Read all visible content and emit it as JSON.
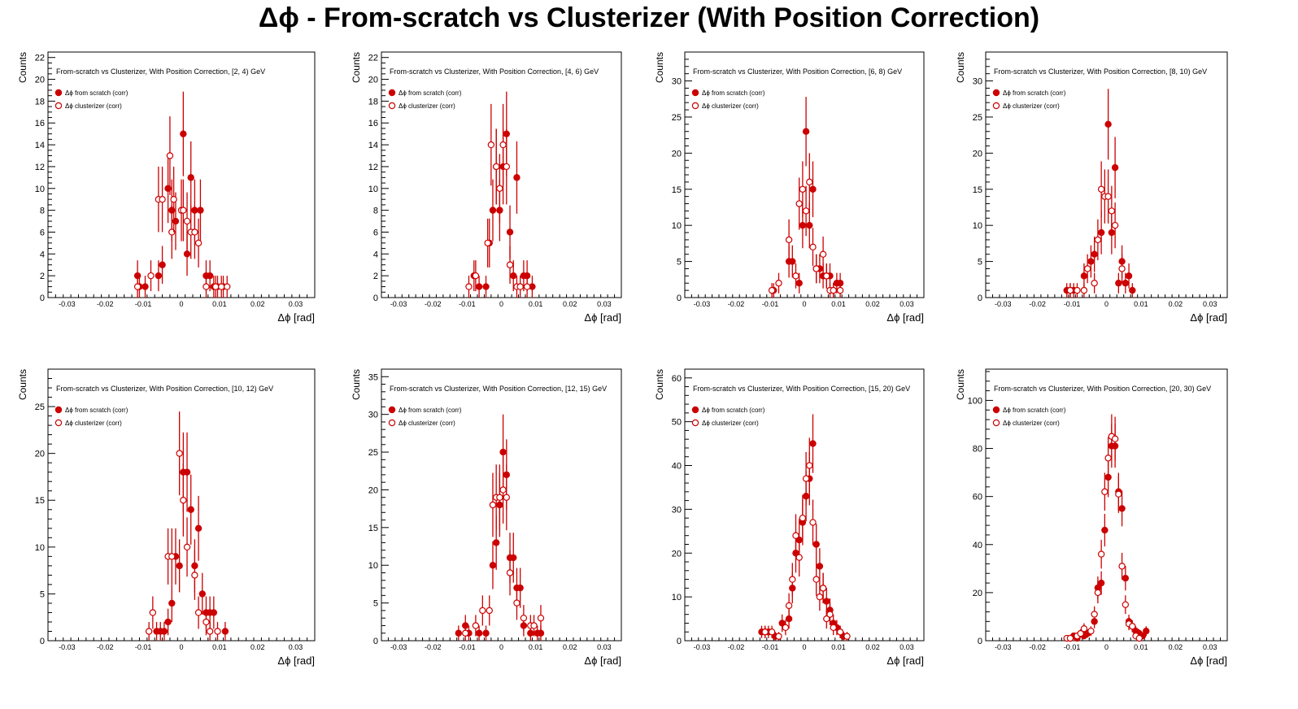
{
  "title": "Δϕ  - From-scratch vs Clusterizer  (With Position Correction)",
  "colors": {
    "series": "#cc0000",
    "axis": "#000000",
    "background": "#ffffff"
  },
  "chart_data": [
    {
      "type": "scatter",
      "title": "From-scratch vs Clusterizer, With Position Correction, [2, 4) GeV",
      "xlabel": "Δϕ  [rad]",
      "ylabel": "Counts",
      "xlim": [
        -0.035,
        0.035
      ],
      "ylim": [
        0,
        22.5
      ],
      "xticks": [
        -0.03,
        -0.02,
        -0.01,
        0,
        0.01,
        0.02,
        0.03
      ],
      "yticks": [
        0,
        2,
        4,
        6,
        8,
        10,
        12,
        14,
        16,
        18,
        20,
        22
      ],
      "grid": false,
      "legend": "top-left",
      "series": [
        {
          "name": "Δϕ  from scratch (corr)",
          "marker": "filled",
          "x": [
            -0.0115,
            -0.011,
            -0.0095,
            -0.006,
            -0.005,
            -0.0035,
            -0.0025,
            -0.0015,
            0.0005,
            0.0015,
            0.0025,
            0.0035,
            0.005,
            0.0065,
            0.0075,
            0.0085,
            0.0095,
            0.011
          ],
          "y": [
            2,
            1,
            1,
            2,
            3,
            10,
            8,
            7,
            15,
            4,
            11,
            8,
            8,
            2,
            2,
            1,
            1,
            1
          ]
        },
        {
          "name": "Δϕ  clusterizer (corr)",
          "marker": "open",
          "x": [
            -0.0115,
            -0.008,
            -0.006,
            -0.005,
            -0.003,
            -0.0025,
            -0.002,
            0,
            0.0005,
            0.0015,
            0.0025,
            0.0035,
            0.0045,
            0.0065,
            0.009,
            0.0105,
            0.012
          ],
          "y": [
            1,
            2,
            9,
            9,
            13,
            6,
            9,
            8,
            8,
            7,
            6,
            6,
            5,
            1,
            1,
            1,
            1
          ]
        }
      ]
    },
    {
      "type": "scatter",
      "title": "From-scratch vs Clusterizer, With Position Correction, [4, 6) GeV",
      "xlabel": "Δϕ  [rad]",
      "ylabel": "Counts",
      "xlim": [
        -0.035,
        0.035
      ],
      "ylim": [
        0,
        22.5
      ],
      "xticks": [
        -0.03,
        -0.02,
        -0.01,
        0,
        0.01,
        0.02,
        0.03
      ],
      "yticks": [
        0,
        2,
        4,
        6,
        8,
        10,
        12,
        14,
        16,
        18,
        20,
        22
      ],
      "grid": false,
      "legend": "top-left",
      "series": [
        {
          "name": "Δϕ  from scratch (corr)",
          "marker": "filled",
          "x": [
            -0.008,
            -0.0065,
            -0.0045,
            -0.0035,
            -0.0025,
            -0.0015,
            -0.0005,
            0.0005,
            0.0015,
            0.0025,
            0.0035,
            0.0045,
            0.0065,
            0.0075,
            0.009
          ],
          "y": [
            2,
            1,
            1,
            5,
            8,
            12,
            8,
            12,
            15,
            6,
            2,
            11,
            2,
            2,
            1
          ]
        },
        {
          "name": "Δϕ  clusterizer (corr)",
          "marker": "open",
          "x": [
            -0.0095,
            -0.0075,
            -0.004,
            -0.003,
            -0.0015,
            -0.0005,
            0.0005,
            0.0015,
            0.0025,
            0.0045,
            0.0055,
            0.0075
          ],
          "y": [
            1,
            2,
            5,
            14,
            12,
            10,
            14,
            12,
            3,
            1,
            1,
            1
          ]
        }
      ]
    },
    {
      "type": "scatter",
      "title": "From-scratch vs Clusterizer, With Position Correction, [6, 8) GeV",
      "xlabel": "Δϕ  [rad]",
      "ylabel": "Counts",
      "xlim": [
        -0.035,
        0.035
      ],
      "ylim": [
        0,
        34
      ],
      "xticks": [
        -0.03,
        -0.02,
        -0.01,
        0,
        0.01,
        0.02,
        0.03
      ],
      "yticks": [
        0,
        5,
        10,
        15,
        20,
        25,
        30
      ],
      "grid": false,
      "legend": "top-left",
      "series": [
        {
          "name": "Δϕ  from scratch (corr)",
          "marker": "filled",
          "x": [
            -0.009,
            -0.0045,
            -0.0035,
            -0.0015,
            -0.0005,
            0.0005,
            0.0015,
            0.0025,
            0.0035,
            0.0045,
            0.0055,
            0.0065,
            0.0075,
            0.0085,
            0.0095,
            0.0105
          ],
          "y": [
            1,
            5,
            5,
            2,
            10,
            23,
            10,
            15,
            4,
            4,
            3,
            3,
            3,
            1,
            2,
            2
          ]
        },
        {
          "name": "Δϕ  clusterizer (corr)",
          "marker": "open",
          "x": [
            -0.0095,
            -0.0075,
            -0.0045,
            -0.0025,
            -0.0015,
            -0.0005,
            0.0005,
            0.0015,
            0.0025,
            0.0035,
            0.0055,
            0.0065,
            0.0075,
            0.0085,
            0.0105
          ],
          "y": [
            1,
            2,
            8,
            3,
            13,
            15,
            12,
            16,
            7,
            4,
            6,
            3,
            1,
            1,
            1
          ]
        }
      ]
    },
    {
      "type": "scatter",
      "title": "From-scratch vs Clusterizer, With Position Correction, [8, 10) GeV",
      "xlabel": "Δϕ  [rad]",
      "ylabel": "Counts",
      "xlim": [
        -0.035,
        0.035
      ],
      "ylim": [
        0,
        34
      ],
      "xticks": [
        -0.03,
        -0.02,
        -0.01,
        0,
        0.01,
        0.02,
        0.03
      ],
      "yticks": [
        0,
        5,
        10,
        15,
        20,
        25,
        30
      ],
      "grid": false,
      "legend": "top-left",
      "series": [
        {
          "name": "Δϕ  from scratch (corr)",
          "marker": "filled",
          "x": [
            -0.0115,
            -0.0105,
            -0.0095,
            -0.0065,
            -0.0045,
            -0.0035,
            -0.0015,
            0.0005,
            0.0015,
            0.0025,
            0.0035,
            0.0045,
            0.0055,
            0.0065,
            0.0075
          ],
          "y": [
            1,
            1,
            1,
            3,
            5,
            6,
            9,
            24,
            9,
            18,
            2,
            5,
            2,
            3,
            1
          ]
        },
        {
          "name": "Δϕ  clusterizer (corr)",
          "marker": "open",
          "x": [
            -0.0105,
            -0.0085,
            -0.0065,
            -0.0055,
            -0.0035,
            -0.0025,
            -0.0015,
            -0.0005,
            0.0005,
            0.0015,
            0.0025,
            0.0045
          ],
          "y": [
            1,
            1,
            1,
            4,
            2,
            8,
            15,
            14,
            14,
            12,
            10,
            4
          ]
        }
      ]
    },
    {
      "type": "scatter",
      "title": "From-scratch vs Clusterizer, With Position Correction, [10, 12) GeV",
      "xlabel": "Δϕ  [rad]",
      "ylabel": "Counts",
      "xlim": [
        -0.035,
        0.035
      ],
      "ylim": [
        0,
        29
      ],
      "xticks": [
        -0.03,
        -0.02,
        -0.01,
        0,
        0.01,
        0.02,
        0.03
      ],
      "yticks": [
        0,
        5,
        10,
        15,
        20,
        25
      ],
      "grid": false,
      "legend": "top-left",
      "series": [
        {
          "name": "Δϕ  from scratch (corr)",
          "marker": "filled",
          "x": [
            -0.0065,
            -0.0055,
            -0.0045,
            -0.0035,
            -0.0025,
            -0.0015,
            -0.0005,
            0.0005,
            0.0015,
            0.0025,
            0.0035,
            0.0045,
            0.0055,
            0.0065,
            0.0075,
            0.0085,
            0.0115
          ],
          "y": [
            1,
            1,
            1,
            2,
            4,
            9,
            8,
            18,
            18,
            14,
            8,
            12,
            5,
            3,
            3,
            3,
            1
          ]
        },
        {
          "name": "Δϕ  clusterizer (corr)",
          "marker": "open",
          "x": [
            -0.0085,
            -0.0075,
            -0.0035,
            -0.0025,
            -0.0005,
            0.0005,
            0.0015,
            0.0035,
            0.0045,
            0.0065,
            0.0075,
            0.0095
          ],
          "y": [
            1,
            3,
            9,
            9,
            20,
            15,
            10,
            7,
            3,
            2,
            1,
            1
          ]
        }
      ]
    },
    {
      "type": "scatter",
      "title": "From-scratch vs Clusterizer, With Position Correction, [12, 15) GeV",
      "xlabel": "Δϕ  [rad]",
      "ylabel": "Counts",
      "xlim": [
        -0.035,
        0.035
      ],
      "ylim": [
        0,
        36
      ],
      "xticks": [
        -0.03,
        -0.02,
        -0.01,
        0,
        0.01,
        0.02,
        0.03
      ],
      "yticks": [
        0,
        5,
        10,
        15,
        20,
        25,
        30,
        35
      ],
      "grid": false,
      "legend": "top-left",
      "series": [
        {
          "name": "Δϕ  from scratch (corr)",
          "marker": "filled",
          "x": [
            -0.0125,
            -0.0105,
            -0.0095,
            -0.0065,
            -0.0045,
            -0.0025,
            -0.0015,
            -0.0005,
            0.0005,
            0.0015,
            0.0025,
            0.0035,
            0.0045,
            0.0055,
            0.0065,
            0.0085,
            0.0105,
            0.0115
          ],
          "y": [
            1,
            2,
            1,
            1,
            1,
            10,
            13,
            18,
            25,
            22,
            11,
            11,
            7,
            7,
            2,
            1,
            1,
            1
          ]
        },
        {
          "name": "Δϕ  clusterizer (corr)",
          "marker": "open",
          "x": [
            -0.0105,
            -0.0075,
            -0.0055,
            -0.0035,
            -0.0025,
            -0.0015,
            -0.0005,
            0.0005,
            0.0015,
            0.0025,
            0.0045,
            0.0065,
            0.0085,
            0.0095,
            0.0115
          ],
          "y": [
            1,
            2,
            4,
            4,
            18,
            19,
            19,
            20,
            19,
            9,
            5,
            3,
            2,
            2,
            3
          ]
        }
      ]
    },
    {
      "type": "scatter",
      "title": "From-scratch vs Clusterizer, With Position Correction, [15, 20) GeV",
      "xlabel": "Δϕ  [rad]",
      "ylabel": "Counts",
      "xlim": [
        -0.035,
        0.035
      ],
      "ylim": [
        0,
        62
      ],
      "xticks": [
        -0.03,
        -0.02,
        -0.01,
        0,
        0.01,
        0.02,
        0.03
      ],
      "yticks": [
        0,
        10,
        20,
        30,
        40,
        50,
        60
      ],
      "grid": false,
      "legend": "top-left",
      "series": [
        {
          "name": "Δϕ  from scratch (corr)",
          "marker": "filled",
          "x": [
            -0.0125,
            -0.0115,
            -0.0105,
            -0.0085,
            -0.0065,
            -0.0045,
            -0.0035,
            -0.0025,
            -0.0015,
            -0.0005,
            0.0005,
            0.0015,
            0.0025,
            0.0035,
            0.0045,
            0.0055,
            0.0065,
            0.0075,
            0.0085,
            0.0095,
            0.0105,
            0.0115
          ],
          "y": [
            2,
            2,
            2,
            1,
            4,
            5,
            12,
            20,
            23,
            27,
            33,
            37,
            45,
            22,
            17,
            12,
            9,
            7,
            4,
            3,
            2,
            1
          ]
        },
        {
          "name": "Δϕ  clusterizer (corr)",
          "marker": "open",
          "x": [
            -0.0115,
            -0.0095,
            -0.0075,
            -0.0055,
            -0.0045,
            -0.0035,
            -0.0025,
            -0.0015,
            -0.0005,
            0.0005,
            0.0015,
            0.0025,
            0.0035,
            0.0045,
            0.0055,
            0.0065,
            0.0075,
            0.0085,
            0.0105,
            0.0125
          ],
          "y": [
            2,
            2,
            1,
            3,
            8,
            14,
            24,
            19,
            28,
            37,
            40,
            27,
            14,
            10,
            12,
            5,
            6,
            3,
            2,
            1
          ]
        }
      ]
    },
    {
      "type": "scatter",
      "title": "From-scratch vs Clusterizer, With Position Correction, [20, 30) GeV",
      "xlabel": "Δϕ  [rad]",
      "ylabel": "Counts",
      "xlim": [
        -0.035,
        0.035
      ],
      "ylim": [
        0,
        113
      ],
      "xticks": [
        -0.03,
        -0.02,
        -0.01,
        0,
        0.01,
        0.02,
        0.03
      ],
      "yticks": [
        0,
        20,
        40,
        60,
        80,
        100
      ],
      "grid": false,
      "legend": "top-left",
      "series": [
        {
          "name": "Δϕ  from scratch (corr)",
          "marker": "filled",
          "x": [
            -0.0105,
            -0.0095,
            -0.0085,
            -0.0065,
            -0.0055,
            -0.0035,
            -0.0025,
            -0.0015,
            -0.0005,
            0.0005,
            0.0015,
            0.0025,
            0.0035,
            0.0045,
            0.0055,
            0.0065,
            0.0075,
            0.0085,
            0.0095,
            0.0105,
            0.0115
          ],
          "y": [
            1,
            2,
            1,
            2,
            3,
            8,
            22,
            24,
            46,
            68,
            81,
            81,
            62,
            55,
            26,
            8,
            6,
            4,
            3,
            2,
            4
          ]
        },
        {
          "name": "Δϕ  clusterizer (corr)",
          "marker": "open",
          "x": [
            -0.0115,
            -0.0105,
            -0.0085,
            -0.0075,
            -0.0065,
            -0.0045,
            -0.0035,
            -0.0025,
            -0.0015,
            -0.0005,
            0.0005,
            0.0015,
            0.0025,
            0.0035,
            0.0045,
            0.0055,
            0.0065,
            0.0075,
            0.0085,
            0.0095
          ],
          "y": [
            1,
            1,
            2,
            3,
            5,
            4,
            11,
            20,
            36,
            62,
            76,
            85,
            84,
            61,
            31,
            15,
            7,
            6,
            2,
            1
          ]
        }
      ]
    }
  ]
}
